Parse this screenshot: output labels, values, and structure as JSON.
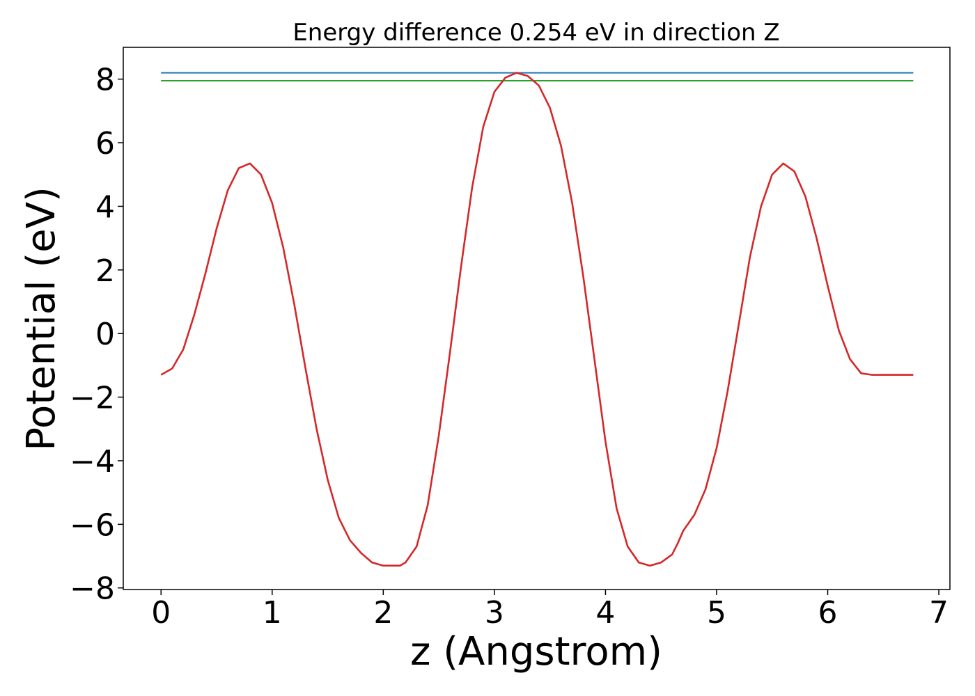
{
  "chart_data": {
    "type": "line",
    "title": "Energy difference 0.254 eV in direction Z",
    "xlabel": "z (Angstrom)",
    "ylabel": "Potential (eV)",
    "xlim": [
      -0.34,
      7.1
    ],
    "ylim": [
      -8.05,
      9.0
    ],
    "xticks": [
      0,
      1,
      2,
      3,
      4,
      5,
      6,
      7
    ],
    "yticks": [
      -8,
      -6,
      -4,
      -2,
      0,
      2,
      4,
      6,
      8
    ],
    "xtick_labels": [
      "0",
      "1",
      "2",
      "3",
      "4",
      "5",
      "6",
      "7"
    ],
    "ytick_labels": [
      "−8",
      "−6",
      "−4",
      "−2",
      "0",
      "2",
      "4",
      "6",
      "8"
    ],
    "grid": false,
    "series": [
      {
        "color": "#1f77b4",
        "x": [
          0,
          6.77
        ],
        "y": [
          8.2,
          8.2
        ]
      },
      {
        "color": "#2ca02c",
        "x": [
          0,
          6.77
        ],
        "y": [
          7.95,
          7.95
        ]
      },
      {
        "color": "#d62728",
        "x": [
          0.0,
          0.1,
          0.2,
          0.3,
          0.4,
          0.5,
          0.6,
          0.7,
          0.8,
          0.9,
          1.0,
          1.1,
          1.2,
          1.3,
          1.4,
          1.5,
          1.6,
          1.7,
          1.8,
          1.9,
          2.0,
          2.1,
          2.15,
          2.2,
          2.3,
          2.4,
          2.5,
          2.6,
          2.7,
          2.8,
          2.9,
          3.0,
          3.1,
          3.2,
          3.3,
          3.4,
          3.5,
          3.6,
          3.7,
          3.8,
          3.9,
          4.0,
          4.1,
          4.2,
          4.3,
          4.4,
          4.5,
          4.6,
          4.65,
          4.7,
          4.8,
          4.9,
          5.0,
          5.1,
          5.2,
          5.3,
          5.4,
          5.5,
          5.6,
          5.7,
          5.8,
          5.9,
          6.0,
          6.1,
          6.2,
          6.3,
          6.4,
          6.5,
          6.6,
          6.7,
          6.77
        ],
        "y": [
          -1.3,
          -1.1,
          -0.5,
          0.6,
          1.9,
          3.3,
          4.5,
          5.2,
          5.35,
          5.0,
          4.1,
          2.7,
          0.9,
          -1.1,
          -3.0,
          -4.6,
          -5.8,
          -6.5,
          -6.9,
          -7.2,
          -7.3,
          -7.3,
          -7.3,
          -7.2,
          -6.7,
          -5.4,
          -3.2,
          -0.6,
          2.1,
          4.6,
          6.5,
          7.6,
          8.05,
          8.2,
          8.1,
          7.8,
          7.1,
          5.9,
          4.1,
          1.8,
          -0.8,
          -3.4,
          -5.5,
          -6.7,
          -7.2,
          -7.3,
          -7.2,
          -6.95,
          -6.6,
          -6.2,
          -5.7,
          -4.9,
          -3.6,
          -1.8,
          0.3,
          2.4,
          4.0,
          5.0,
          5.35,
          5.1,
          4.3,
          3.0,
          1.5,
          0.1,
          -0.8,
          -1.25,
          -1.3,
          -1.3,
          -1.3,
          -1.3,
          -1.3
        ],
        "x_fine_note_removed": null
      }
    ]
  }
}
